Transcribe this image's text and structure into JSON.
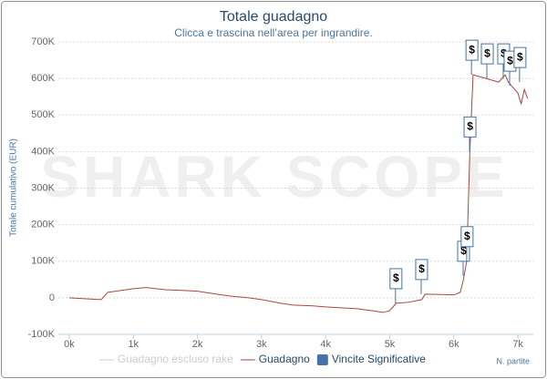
{
  "chart_data": {
    "type": "line",
    "title": "Totale guadagno",
    "subtitle": "Clicca e trascina nell’area per ingrandire.",
    "watermark": "SHARK SCOPE",
    "y_label": "Totale cumulativo (EUR)",
    "x_label": "N. partite",
    "xlim": [
      -170,
      7240
    ],
    "ylim": [
      -100000,
      700000
    ],
    "xticks": [
      {
        "value": 0,
        "label": "0k"
      },
      {
        "value": 1000,
        "label": "1k"
      },
      {
        "value": 2000,
        "label": "2k"
      },
      {
        "value": 3000,
        "label": "3k"
      },
      {
        "value": 4000,
        "label": "4k"
      },
      {
        "value": 5000,
        "label": "5k"
      },
      {
        "value": 6000,
        "label": "6k"
      },
      {
        "value": 7000,
        "label": "7k"
      }
    ],
    "yticks": [
      {
        "value": -100000,
        "label": "-100K"
      },
      0,
      {
        "value": 100000,
        "label": "100K"
      },
      {
        "value": 200000,
        "label": "200K"
      },
      {
        "value": 300000,
        "label": "300K"
      },
      {
        "value": 400000,
        "label": "400K"
      },
      {
        "value": 500000,
        "label": "500K"
      },
      {
        "value": 600000,
        "label": "600K"
      },
      {
        "value": 700000,
        "label": "700K"
      }
    ],
    "grid": true,
    "x": [
      0,
      300,
      500,
      600,
      800,
      1000,
      1200,
      1400,
      1500,
      1800,
      2000,
      2300,
      2500,
      2800,
      3000,
      3300,
      3500,
      3800,
      4000,
      4300,
      4500,
      4700,
      4900,
      5000,
      5100,
      5300,
      5500,
      5550,
      5800,
      6000,
      6100,
      6150,
      6200,
      6250,
      6300,
      6400,
      6500,
      6600,
      6700,
      6800,
      6850,
      6900,
      7000,
      7050,
      7100,
      7150
    ],
    "series": [
      {
        "name": "Guadagno escluso rake",
        "color": "#c8c8c8",
        "visible": false,
        "values": [
          null,
          null,
          null,
          null,
          null,
          null,
          null,
          null,
          null,
          null,
          null,
          null,
          null,
          null,
          null,
          null,
          null,
          null,
          null,
          null,
          null,
          null,
          null,
          null,
          null,
          null,
          null,
          null,
          null,
          null,
          null,
          null,
          null,
          null,
          null,
          null,
          null,
          null,
          null,
          null,
          null,
          null,
          null,
          null,
          null,
          null
        ]
      },
      {
        "name": "Guadagno",
        "color": "#aa4643",
        "visible": true,
        "values": [
          0,
          -3000,
          -5000,
          15000,
          20000,
          25000,
          28000,
          24000,
          22000,
          20000,
          18000,
          10000,
          5000,
          0,
          -5000,
          -15000,
          -20000,
          -22000,
          -25000,
          -28000,
          -30000,
          -35000,
          -40000,
          -35000,
          -15000,
          -12000,
          -5000,
          10000,
          9000,
          8000,
          15000,
          50000,
          100000,
          400000,
          610000,
          605000,
          600000,
          595000,
          590000,
          610000,
          590000,
          580000,
          560000,
          530000,
          570000,
          545000
        ]
      }
    ],
    "flags": {
      "name": "Vincite Significative",
      "color": "#4572a7",
      "text": "$",
      "x": [
        5090,
        5490,
        6145,
        6200,
        6245,
        6275,
        6515,
        6770,
        6870,
        7025
      ],
      "values": [
        -15000,
        10000,
        60000,
        100000,
        400000,
        610000,
        600000,
        600000,
        580000,
        590000
      ]
    }
  }
}
